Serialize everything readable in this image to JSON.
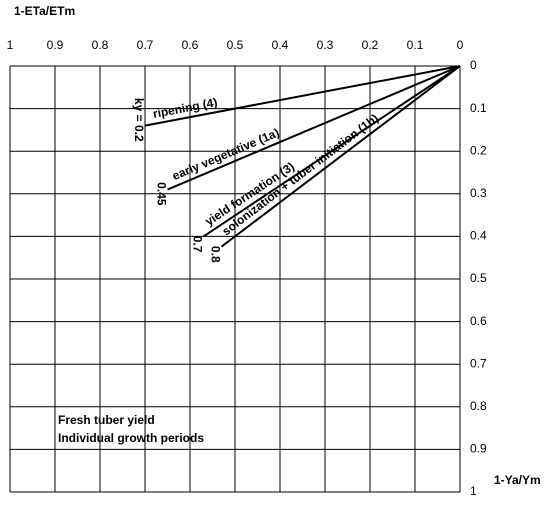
{
  "chart_data": {
    "type": "line",
    "x_label": "1-ETa/ETm",
    "y_label": "1-Ya/Ym",
    "annotations": [
      "Fresh tuber yield",
      "Individual growth periods"
    ],
    "xlim": [
      1,
      0
    ],
    "ylim": [
      0,
      1
    ],
    "xticks": [
      1,
      0.9,
      0.8,
      0.7,
      0.6,
      0.5,
      0.4,
      0.3,
      0.2,
      0.1,
      0
    ],
    "yticks": [
      0,
      0.1,
      0.2,
      0.3,
      0.4,
      0.5,
      0.6,
      0.7,
      0.8,
      0.9,
      1
    ],
    "grid": true,
    "series": [
      {
        "name": "ripening (4)",
        "ky_label": "ky = 0.2",
        "color": "#000000",
        "x": [
          0,
          0.7
        ],
        "y": [
          0,
          0.14
        ]
      },
      {
        "name": "early vegetative (1a)",
        "ky_label": "0.45",
        "color": "#000000",
        "x": [
          0,
          0.65
        ],
        "y": [
          0,
          0.29
        ]
      },
      {
        "name": "yield formation (3)",
        "ky_label": "0.7",
        "color": "#000000",
        "x": [
          0,
          0.57
        ],
        "y": [
          0,
          0.4
        ]
      },
      {
        "name": "solonization + tuber initiation (1b)",
        "ky_label": "0.8",
        "color": "#000000",
        "x": [
          0,
          0.53
        ],
        "y": [
          0,
          0.424
        ]
      }
    ]
  }
}
